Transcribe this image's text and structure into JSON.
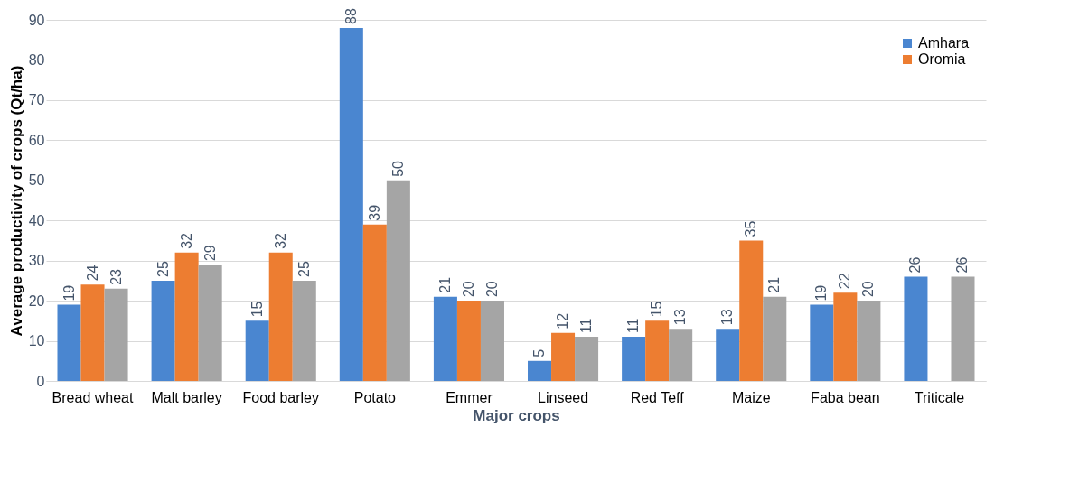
{
  "chart_data": {
    "type": "bar",
    "xlabel": "Major crops",
    "ylabel": "Average productivity of crops (Qt/ha)",
    "categories": [
      "Bread wheat",
      "Malt barley",
      "Food barley",
      "Potato",
      "Emmer",
      "Linseed",
      "Red Teff",
      "Maize",
      "Faba bean",
      "Triticale"
    ],
    "series": [
      {
        "name": "Amhara",
        "color": "#4a86d0",
        "values": [
          19,
          25,
          15,
          88,
          21,
          5,
          11,
          13,
          19,
          26
        ]
      },
      {
        "name": "Oromia",
        "color": "#ed7d31",
        "values": [
          24,
          32,
          32,
          39,
          20,
          12,
          15,
          35,
          22,
          null
        ]
      },
      {
        "color": "#a5a5a5",
        "values": [
          23,
          29,
          25,
          50,
          20,
          11,
          13,
          21,
          20,
          26
        ]
      }
    ],
    "ylim": [
      0,
      90
    ],
    "yticks": [
      0,
      10,
      20,
      30,
      40,
      50,
      60,
      70,
      80,
      90
    ],
    "grid": "y",
    "legend": "top right",
    "data_labels": true
  }
}
